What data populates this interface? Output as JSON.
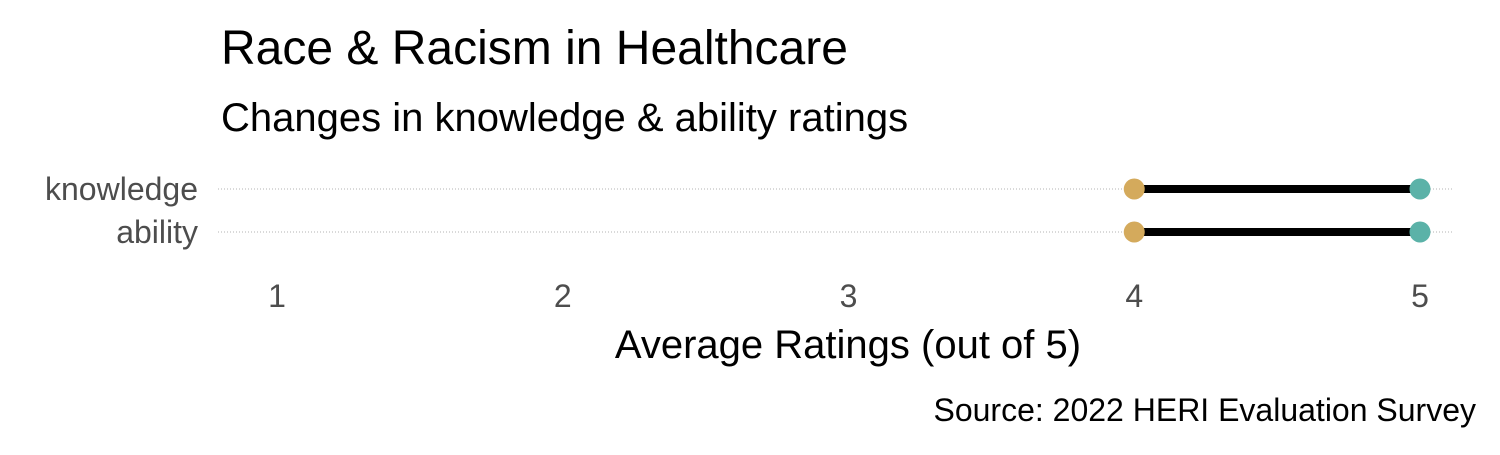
{
  "chart_data": {
    "type": "dumbbell",
    "title": "Race & Racism in Healthcare",
    "subtitle": "Changes in knowledge & ability ratings",
    "xlabel": "Average Ratings (out of 5)",
    "ylabel": "",
    "caption": "Source: 2022 HERI Evaluation Survey",
    "xlim": [
      1,
      5
    ],
    "x_ticks": [
      1,
      2,
      3,
      4,
      5
    ],
    "x_tick_labels": [
      "1",
      "2",
      "3",
      "4",
      "5"
    ],
    "grid": "horizontal dotted",
    "categories": [
      "knowledge",
      "ability"
    ],
    "series": [
      {
        "values": [
          4,
          4
        ],
        "color": "#D4AA5C"
      },
      {
        "values": [
          5,
          5
        ],
        "color": "#5BB2A8"
      }
    ],
    "connector_color": "#000000"
  }
}
